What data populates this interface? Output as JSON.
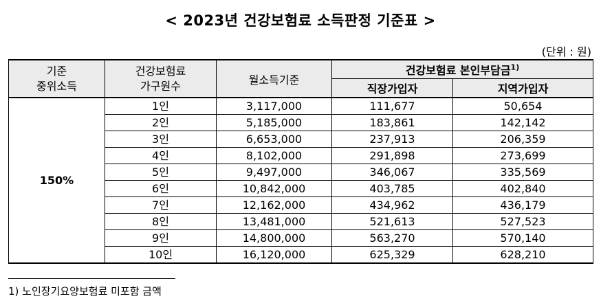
{
  "title": "< 2023년 건강보험료 소득판정 기준표 >",
  "unit_label": "(단위 : 원)",
  "headers": {
    "criteria": "기준\n중위소득",
    "household": "건강보험료\n가구원수",
    "income": "월소득기준",
    "premium": "건강보험료 본인부담금",
    "premium_note": "1)",
    "workplace": "직장가입자",
    "regional": "지역가입자"
  },
  "ratio": "150%",
  "rows": [
    {
      "size": "1인",
      "income": "3,117,000",
      "workplace": "111,677",
      "regional": "50,654"
    },
    {
      "size": "2인",
      "income": "5,185,000",
      "workplace": "183,861",
      "regional": "142,142"
    },
    {
      "size": "3인",
      "income": "6,653,000",
      "workplace": "237,913",
      "regional": "206,359"
    },
    {
      "size": "4인",
      "income": "8,102,000",
      "workplace": "291,898",
      "regional": "273,699"
    },
    {
      "size": "5인",
      "income": "9,497,000",
      "workplace": "346,067",
      "regional": "335,569"
    },
    {
      "size": "6인",
      "income": "10,842,000",
      "workplace": "403,785",
      "regional": "402,840"
    },
    {
      "size": "7인",
      "income": "12,162,000",
      "workplace": "434,962",
      "regional": "436,179"
    },
    {
      "size": "8인",
      "income": "13,481,000",
      "workplace": "521,613",
      "regional": "527,523"
    },
    {
      "size": "9인",
      "income": "14,800,000",
      "workplace": "563,270",
      "regional": "570,140"
    },
    {
      "size": "10인",
      "income": "16,120,000",
      "workplace": "625,329",
      "regional": "628,210"
    }
  ],
  "footnote": "1) 노인장기요양보험료 미포함 금액"
}
